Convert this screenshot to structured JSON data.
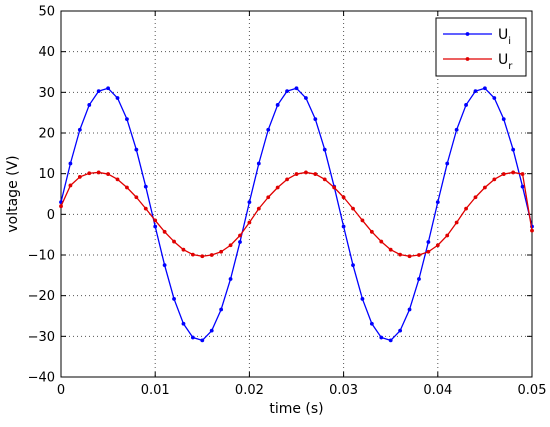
{
  "chart_data": {
    "type": "line",
    "title": "",
    "xlabel": "time (s)",
    "ylabel": "voltage (V)",
    "xlim": [
      0,
      0.05
    ],
    "ylim": [
      -40,
      50
    ],
    "xticks": [
      0,
      0.01,
      0.02,
      0.03,
      0.04,
      0.05
    ],
    "xtick_labels": [
      "0",
      "0.01",
      "0.02",
      "0.03",
      "0.04",
      "0.05"
    ],
    "yticks": [
      -40,
      -30,
      -20,
      -10,
      0,
      10,
      20,
      30,
      40,
      50
    ],
    "ytick_labels": [
      "−40",
      "−30",
      "−20",
      "−10",
      "0",
      "10",
      "20",
      "30",
      "40",
      "50"
    ],
    "grid": true,
    "legend_position": "top-right",
    "sampling": {
      "x_start": 0,
      "x_step": 0.001,
      "count": 51
    },
    "series": [
      {
        "name": "U",
        "subscript": "i",
        "color": "#0000ff",
        "values": [
          3.0,
          12.5,
          20.8,
          26.9,
          30.3,
          31.0,
          28.6,
          23.4,
          15.9,
          6.8,
          -3.0,
          -12.5,
          -20.8,
          -26.9,
          -30.3,
          -31.0,
          -28.6,
          -23.4,
          -15.9,
          -6.8,
          3.0,
          12.5,
          20.8,
          26.9,
          30.3,
          31.0,
          28.6,
          23.4,
          15.9,
          6.8,
          -3.0,
          -12.5,
          -20.8,
          -26.9,
          -30.3,
          -31.0,
          -28.6,
          -23.4,
          -15.9,
          -6.8,
          3.0,
          12.5,
          20.8,
          26.9,
          30.3,
          31.0,
          28.6,
          23.4,
          15.9,
          6.8,
          -3.0
        ]
      },
      {
        "name": "U",
        "subscript": "r",
        "color": "#e00000",
        "values": [
          2.0,
          7.1,
          9.2,
          10.1,
          10.3,
          9.9,
          8.6,
          6.6,
          4.2,
          1.4,
          -1.5,
          -4.3,
          -6.7,
          -8.7,
          -9.9,
          -10.3,
          -10.0,
          -9.2,
          -7.6,
          -5.2,
          -2.0,
          1.4,
          4.2,
          6.6,
          8.6,
          9.9,
          10.3,
          9.9,
          8.6,
          6.6,
          4.2,
          1.4,
          -1.5,
          -4.3,
          -6.7,
          -8.7,
          -9.9,
          -10.3,
          -10.0,
          -9.2,
          -7.6,
          -5.2,
          -2.0,
          1.4,
          4.2,
          6.6,
          8.6,
          9.9,
          10.3,
          9.9,
          -4.0
        ]
      }
    ]
  }
}
